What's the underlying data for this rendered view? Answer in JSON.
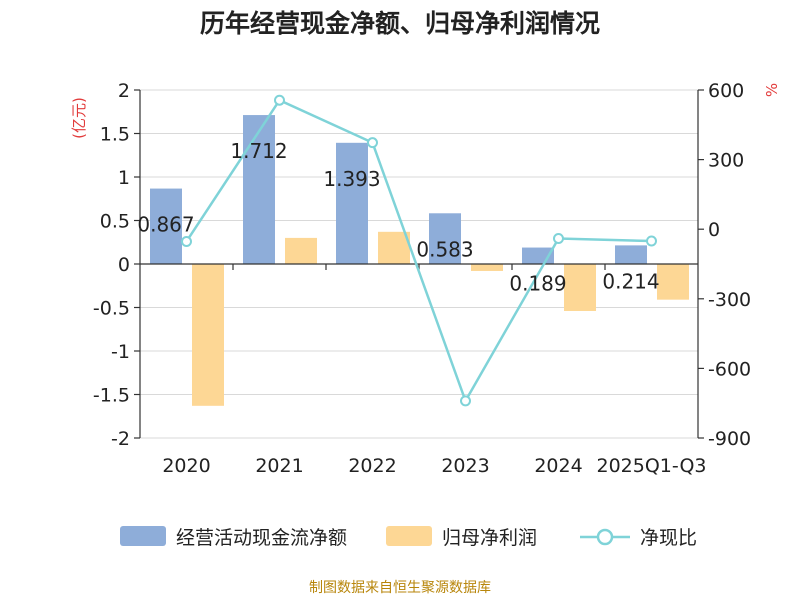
{
  "chart_data": {
    "type": "bar",
    "title": "历年经营现金净额、归母净利润情况",
    "categories": [
      "2020",
      "2021",
      "2022",
      "2023",
      "2024",
      "2025Q1-Q3"
    ],
    "y_left": {
      "unit": "(亿元)",
      "ylim": [
        -2,
        2
      ],
      "ticks": [
        "2",
        "1.5",
        "1",
        "0.5",
        "0",
        "-0.5",
        "-1",
        "-1.5",
        "-2"
      ]
    },
    "y_right": {
      "unit": "%",
      "ylim": [
        -900,
        600
      ],
      "ticks": [
        "600",
        "300",
        "0",
        "-300",
        "-600",
        "-900"
      ]
    },
    "series": [
      {
        "name": "经营活动现金流净额",
        "kind": "bar",
        "axis": "left",
        "color": "#8eadd9",
        "values": [
          0.867,
          1.712,
          1.393,
          0.583,
          0.189,
          0.214
        ],
        "labels": [
          "0.867",
          "1.712",
          "1.393",
          "0.583",
          "0.189",
          "0.214"
        ]
      },
      {
        "name": "归母净利润",
        "kind": "bar",
        "axis": "left",
        "color": "#fdd795",
        "values": [
          -1.63,
          0.3,
          0.37,
          -0.08,
          -0.54,
          -0.41
        ]
      },
      {
        "name": "净现比",
        "kind": "line",
        "axis": "right",
        "color": "#7fd3d8",
        "values": [
          -53,
          556,
          373,
          -740,
          -40,
          -51
        ]
      }
    ],
    "grid": true,
    "legend": "bottom"
  },
  "source": "制图数据来自恒生聚源数据库"
}
